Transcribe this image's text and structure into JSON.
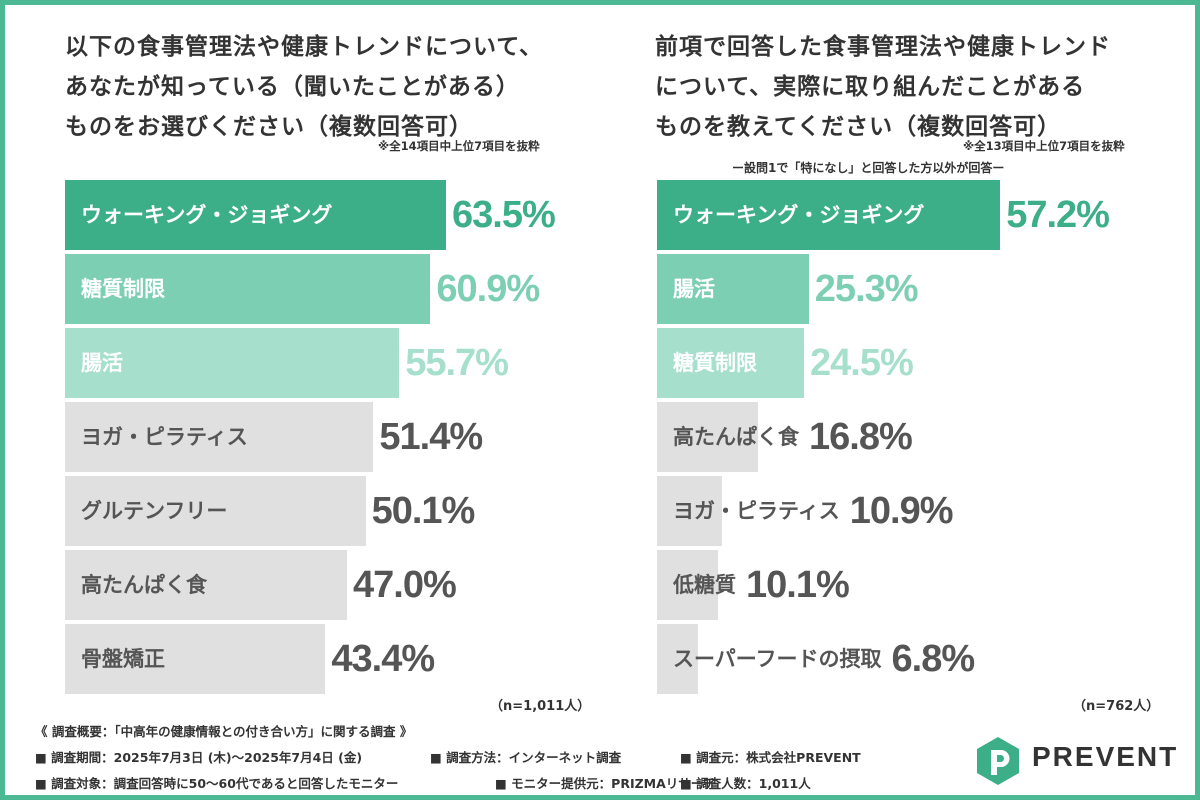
{
  "chart_data": [
    {
      "type": "bar",
      "orientation": "horizontal",
      "title_lines": [
        "以下の食事管理法や健康トレンドについて、",
        "あなたが知っている（聞いたことがある）",
        "ものをお選びください（複数回答可）"
      ],
      "note": "※全14項目中上位7項目を抜粋",
      "subtitle": "",
      "categories": [
        "ウォーキング・ジョギング",
        "糖質制限",
        "腸活",
        "ヨガ・ピラティス",
        "グルテンフリー",
        "高たんぱく食",
        "骨盤矯正"
      ],
      "values": [
        63.5,
        60.9,
        55.7,
        51.4,
        50.1,
        47.0,
        43.4
      ],
      "value_labels": [
        "63.5%",
        "60.9%",
        "55.7%",
        "51.4%",
        "50.1%",
        "47.0%",
        "43.4%"
      ],
      "n_label": "（n=1,011人）",
      "xlim": [
        0,
        100
      ],
      "grid": false,
      "colors": {
        "bars": [
          "#3cae88",
          "#7dcfb3",
          "#a6dfcb",
          "#e0e0e0",
          "#e0e0e0",
          "#e0e0e0",
          "#e0e0e0"
        ],
        "labels": [
          "#ffffff",
          "#ffffff",
          "#ffffff",
          "#555555",
          "#555555",
          "#555555",
          "#555555"
        ],
        "values": [
          "#3cae88",
          "#7dcfb3",
          "#a6dfcb",
          "#555555",
          "#555555",
          "#555555",
          "#555555"
        ]
      }
    },
    {
      "type": "bar",
      "orientation": "horizontal",
      "title_lines": [
        "前項で回答した食事管理法や健康トレンド",
        "について、実際に取り組んだことがある",
        "ものを教えてください（複数回答可）"
      ],
      "note": "※全13項目中上位7項目を抜粋",
      "subtitle": "ー設問1で「特になし」と回答した方以外が回答ー",
      "categories": [
        "ウォーキング・ジョギング",
        "腸活",
        "糖質制限",
        "高たんぱく食",
        "ヨガ・ピラティス",
        "低糖質",
        "スーパーフードの摂取"
      ],
      "values": [
        57.2,
        25.3,
        24.5,
        16.8,
        10.9,
        10.1,
        6.8
      ],
      "value_labels": [
        "57.2%",
        "25.3%",
        "24.5%",
        "16.8%",
        "10.9%",
        "10.1%",
        "6.8%"
      ],
      "n_label": "（n=762人）",
      "xlim": [
        0,
        100
      ],
      "grid": false,
      "colors": {
        "bars": [
          "#3cae88",
          "#7dcfb3",
          "#a6dfcb",
          "#e0e0e0",
          "#e0e0e0",
          "#e0e0e0",
          "#e0e0e0"
        ],
        "labels": [
          "#ffffff",
          "#ffffff",
          "#ffffff",
          "#555555",
          "#555555",
          "#555555",
          "#555555"
        ],
        "values": [
          "#3cae88",
          "#7dcfb3",
          "#a6dfcb",
          "#555555",
          "#555555",
          "#555555",
          "#555555"
        ]
      }
    }
  ],
  "footer": {
    "summary": "《 調査概要：「中高年の健康情報との付き合い方」に関する調査 》",
    "period": "■ 調査期間：2025年7月3日 (木)～2025年7月4日 (金)",
    "method": "■ 調査方法：インターネット調査",
    "org": "■ 調査元：株式会社PREVENT",
    "target": "■ 調査対象：調査回答時に50～60代であると回答したモニター",
    "provider": "■ モニター提供元：PRIZMAリサーチ",
    "count": "■ 調査人数：1,011人"
  },
  "logo": {
    "name": "PREVENT",
    "icon": "prevent-p-icon",
    "color": "#3cae88"
  },
  "frame_color": "#4cb894"
}
